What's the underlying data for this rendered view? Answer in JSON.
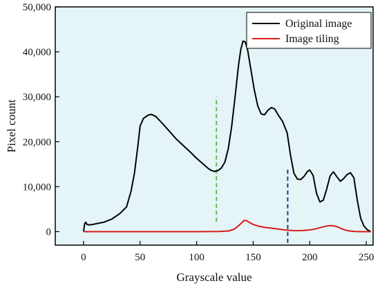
{
  "chart_data": {
    "type": "line",
    "xlabel": "Grayscale value",
    "ylabel": "Pixel count",
    "xlim": [
      -25,
      256
    ],
    "ylim": [
      -3000,
      50000
    ],
    "x_ticks": [
      0,
      50,
      100,
      150,
      200,
      250
    ],
    "y_ticks": [
      0,
      10000,
      20000,
      30000,
      40000,
      50000
    ],
    "y_tick_labels": [
      "0",
      "10,000",
      "20,000",
      "30,000",
      "40,000",
      "50,000"
    ],
    "x_tick_labels": [
      "0",
      "50",
      "100",
      "150",
      "200",
      "250"
    ],
    "grid": false,
    "legend_position": "top-right",
    "background_color": "#e4f4f7",
    "series": [
      {
        "name": "Original image",
        "color": "#000000",
        "points": [
          [
            0,
            0
          ],
          [
            1,
            1800
          ],
          [
            2,
            2100
          ],
          [
            3,
            1600
          ],
          [
            5,
            1500
          ],
          [
            8,
            1600
          ],
          [
            12,
            1800
          ],
          [
            18,
            2100
          ],
          [
            25,
            2800
          ],
          [
            32,
            4000
          ],
          [
            38,
            5500
          ],
          [
            42,
            9000
          ],
          [
            45,
            13000
          ],
          [
            48,
            19000
          ],
          [
            50,
            23500
          ],
          [
            53,
            25200
          ],
          [
            57,
            25900
          ],
          [
            60,
            26100
          ],
          [
            64,
            25600
          ],
          [
            70,
            24000
          ],
          [
            76,
            22300
          ],
          [
            82,
            20600
          ],
          [
            88,
            19200
          ],
          [
            94,
            17800
          ],
          [
            100,
            16300
          ],
          [
            106,
            15000
          ],
          [
            110,
            14100
          ],
          [
            113,
            13600
          ],
          [
            116,
            13400
          ],
          [
            119,
            13600
          ],
          [
            122,
            14200
          ],
          [
            125,
            15500
          ],
          [
            128,
            18500
          ],
          [
            131,
            23500
          ],
          [
            134,
            30000
          ],
          [
            137,
            37000
          ],
          [
            139,
            40500
          ],
          [
            141,
            42400
          ],
          [
            143,
            42200
          ],
          [
            145,
            40500
          ],
          [
            148,
            36000
          ],
          [
            151,
            31500
          ],
          [
            154,
            28000
          ],
          [
            157,
            26200
          ],
          [
            160,
            26000
          ],
          [
            163,
            27000
          ],
          [
            166,
            27600
          ],
          [
            169,
            27300
          ],
          [
            172,
            26000
          ],
          [
            176,
            24500
          ],
          [
            180,
            22000
          ],
          [
            183,
            17000
          ],
          [
            186,
            13000
          ],
          [
            189,
            11700
          ],
          [
            192,
            11600
          ],
          [
            195,
            12300
          ],
          [
            198,
            13400
          ],
          [
            200,
            13700
          ],
          [
            203,
            12500
          ],
          [
            206,
            8500
          ],
          [
            209,
            6600
          ],
          [
            212,
            7000
          ],
          [
            215,
            9500
          ],
          [
            218,
            12400
          ],
          [
            221,
            13300
          ],
          [
            224,
            12200
          ],
          [
            227,
            11200
          ],
          [
            230,
            11800
          ],
          [
            233,
            12700
          ],
          [
            236,
            13100
          ],
          [
            239,
            12000
          ],
          [
            242,
            7000
          ],
          [
            245,
            3000
          ],
          [
            248,
            1200
          ],
          [
            251,
            400
          ],
          [
            254,
            0
          ]
        ]
      },
      {
        "name": "Image tiling",
        "color": "#d81818",
        "points": [
          [
            0,
            0
          ],
          [
            20,
            0
          ],
          [
            60,
            0
          ],
          [
            100,
            0
          ],
          [
            120,
            30
          ],
          [
            128,
            150
          ],
          [
            133,
            500
          ],
          [
            137,
            1300
          ],
          [
            140,
            2000
          ],
          [
            142,
            2500
          ],
          [
            144,
            2450
          ],
          [
            147,
            2000
          ],
          [
            150,
            1600
          ],
          [
            155,
            1200
          ],
          [
            160,
            950
          ],
          [
            165,
            800
          ],
          [
            170,
            650
          ],
          [
            175,
            480
          ],
          [
            180,
            330
          ],
          [
            185,
            250
          ],
          [
            190,
            230
          ],
          [
            195,
            270
          ],
          [
            200,
            380
          ],
          [
            205,
            600
          ],
          [
            210,
            950
          ],
          [
            215,
            1250
          ],
          [
            219,
            1350
          ],
          [
            222,
            1250
          ],
          [
            226,
            900
          ],
          [
            230,
            450
          ],
          [
            235,
            150
          ],
          [
            240,
            40
          ],
          [
            245,
            0
          ],
          [
            254,
            0
          ]
        ]
      }
    ],
    "annotations": [
      {
        "type": "vline",
        "x": 117.5,
        "y_from": 2200,
        "y_to": 30000,
        "color": "#5fbf4a",
        "style": "dashed"
      },
      {
        "type": "vline",
        "x": 180.5,
        "y_from": -2500,
        "y_to": 14200,
        "color": "#1e3a8a",
        "style": "dashed"
      }
    ]
  }
}
